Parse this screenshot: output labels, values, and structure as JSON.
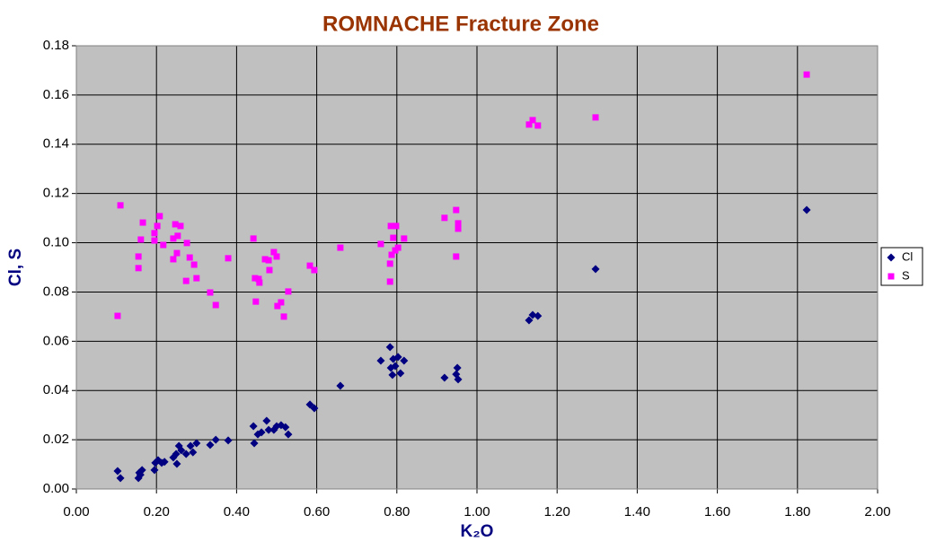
{
  "chart_data": {
    "type": "scatter",
    "title": "ROMNACHE Fracture Zone",
    "x_label": "K₂O",
    "y_label": "Cl, S",
    "xlim": [
      0,
      2
    ],
    "ylim": [
      0,
      0.18
    ],
    "grid": true,
    "legend": "right",
    "xticks": [
      {
        "value": 0,
        "label": "0.00"
      },
      {
        "value": 0.2,
        "label": "0.20"
      },
      {
        "value": 0.4,
        "label": "0.40"
      },
      {
        "value": 0.6,
        "label": "0.60"
      },
      {
        "value": 0.8,
        "label": "0.80"
      },
      {
        "value": 1,
        "label": "1.00"
      },
      {
        "value": 1.2,
        "label": "1.20"
      },
      {
        "value": 1.4,
        "label": "1.40"
      },
      {
        "value": 1.6,
        "label": "1.60"
      },
      {
        "value": 1.8,
        "label": "1.80"
      },
      {
        "value": 2,
        "label": "2.00"
      }
    ],
    "yticks": [
      {
        "value": 0,
        "label": "0.00"
      },
      {
        "value": 0.02,
        "label": "0.02"
      },
      {
        "value": 0.04,
        "label": "0.04"
      },
      {
        "value": 0.06,
        "label": "0.06"
      },
      {
        "value": 0.08,
        "label": "0.08"
      },
      {
        "value": 0.1,
        "label": "0.10"
      },
      {
        "value": 0.12,
        "label": "0.12"
      },
      {
        "value": 0.14,
        "label": "0.14"
      },
      {
        "value": 0.16,
        "label": "0.16"
      },
      {
        "value": 0.18,
        "label": "0.18"
      }
    ],
    "series": [
      {
        "name": "Cl",
        "color": "#000080",
        "marker": "diamond",
        "x": [
          0.103,
          0.11,
          0.155,
          0.157,
          0.164,
          0.16,
          0.195,
          0.197,
          0.204,
          0.213,
          0.22,
          0.242,
          0.249,
          0.251,
          0.256,
          0.262,
          0.274,
          0.285,
          0.291,
          0.3,
          0.334,
          0.348,
          0.379,
          0.442,
          0.444,
          0.453,
          0.462,
          0.475,
          0.48,
          0.493,
          0.5,
          0.511,
          0.522,
          0.529,
          0.583,
          0.594,
          0.659,
          0.76,
          0.783,
          0.785,
          0.789,
          0.791,
          0.796,
          0.803,
          0.809,
          0.818,
          0.919,
          0.948,
          0.951,
          0.953,
          1.13,
          1.139,
          1.152,
          1.296,
          1.823
        ],
        "values": [
          0.0073,
          0.0044,
          0.0044,
          0.0066,
          0.0077,
          0.0058,
          0.0077,
          0.0106,
          0.0117,
          0.0106,
          0.011,
          0.0128,
          0.0142,
          0.0102,
          0.0175,
          0.0157,
          0.0142,
          0.0175,
          0.0149,
          0.0186,
          0.0179,
          0.02,
          0.0197,
          0.0255,
          0.0186,
          0.0222,
          0.023,
          0.0277,
          0.024,
          0.024,
          0.0255,
          0.0259,
          0.0251,
          0.0222,
          0.0343,
          0.0328,
          0.0419,
          0.0521,
          0.0576,
          0.0492,
          0.0463,
          0.0528,
          0.0499,
          0.0536,
          0.047,
          0.0521,
          0.0452,
          0.0466,
          0.0492,
          0.0445,
          0.0685,
          0.0707,
          0.0703,
          0.0893,
          0.1133
        ]
      },
      {
        "name": "S",
        "color": "#ff00ff",
        "marker": "square",
        "x": [
          0.103,
          0.11,
          0.155,
          0.155,
          0.161,
          0.166,
          0.195,
          0.195,
          0.202,
          0.208,
          0.217,
          0.242,
          0.242,
          0.247,
          0.251,
          0.253,
          0.26,
          0.274,
          0.276,
          0.283,
          0.294,
          0.3,
          0.334,
          0.348,
          0.379,
          0.442,
          0.446,
          0.448,
          0.455,
          0.457,
          0.471,
          0.48,
          0.482,
          0.493,
          0.5,
          0.502,
          0.511,
          0.518,
          0.529,
          0.583,
          0.594,
          0.659,
          0.76,
          0.783,
          0.783,
          0.785,
          0.787,
          0.791,
          0.796,
          0.798,
          0.803,
          0.818,
          0.919,
          0.948,
          0.948,
          0.953,
          0.953,
          1.13,
          1.139,
          1.152,
          1.296,
          1.823
        ],
        "values": [
          0.0703,
          0.1152,
          0.0944,
          0.0897,
          0.1013,
          0.1082,
          0.1039,
          0.1009,
          0.1068,
          0.1108,
          0.0991,
          0.0933,
          0.1017,
          0.1075,
          0.0958,
          0.1028,
          0.1068,
          0.0845,
          0.0999,
          0.094,
          0.0911,
          0.0856,
          0.0798,
          0.0747,
          0.0937,
          0.1017,
          0.0856,
          0.0761,
          0.0853,
          0.0838,
          0.0933,
          0.0929,
          0.0889,
          0.0962,
          0.0944,
          0.0743,
          0.0758,
          0.07,
          0.0802,
          0.0907,
          0.0889,
          0.098,
          0.0995,
          0.0842,
          0.0915,
          0.1068,
          0.0951,
          0.102,
          0.0969,
          0.1068,
          0.098,
          0.1017,
          0.1101,
          0.0944,
          0.1133,
          0.1079,
          0.1057,
          0.148,
          0.1498,
          0.1476,
          0.1509,
          0.1683
        ]
      }
    ]
  }
}
